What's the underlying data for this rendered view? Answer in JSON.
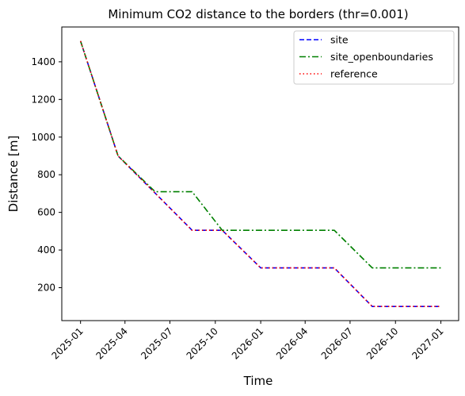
{
  "chart_data": {
    "type": "line",
    "title": "Minimum CO2 distance to the borders (thr=0.001)",
    "xlabel": "Time",
    "ylabel": "Distance [m]",
    "x_tick_labels": [
      "2025-01",
      "2025-04",
      "2025-07",
      "2025-10",
      "2026-01",
      "2026-04",
      "2026-07",
      "2026-10",
      "2027-01"
    ],
    "y_tick_labels": [
      "200",
      "400",
      "600",
      "800",
      "1000",
      "1200",
      "1400"
    ],
    "y_ticks": [
      200,
      400,
      600,
      800,
      1000,
      1200,
      1400
    ],
    "ylim": [
      25,
      1585
    ],
    "xlim": [
      "2024-11-24",
      "2027-02-06"
    ],
    "grid": false,
    "legend_position": "top-right",
    "series": [
      {
        "name": "site",
        "color": "#0000ff",
        "style": "dashed",
        "points": [
          {
            "date": "2025-01-01",
            "value": 1510
          },
          {
            "date": "2025-03-18",
            "value": 900
          },
          {
            "date": "2025-08-15",
            "value": 505
          },
          {
            "date": "2025-10-15",
            "value": 505
          },
          {
            "date": "2026-01-01",
            "value": 305
          },
          {
            "date": "2026-05-30",
            "value": 305
          },
          {
            "date": "2026-08-15",
            "value": 100
          },
          {
            "date": "2027-01-01",
            "value": 100
          }
        ]
      },
      {
        "name": "site_openboundaries",
        "color": "#008000",
        "style": "dashdot",
        "points": [
          {
            "date": "2025-01-01",
            "value": 1510
          },
          {
            "date": "2025-03-18",
            "value": 900
          },
          {
            "date": "2025-06-01",
            "value": 710
          },
          {
            "date": "2025-08-15",
            "value": 710
          },
          {
            "date": "2025-10-15",
            "value": 505
          },
          {
            "date": "2026-05-30",
            "value": 505
          },
          {
            "date": "2026-08-15",
            "value": 305
          },
          {
            "date": "2027-01-01",
            "value": 305
          }
        ]
      },
      {
        "name": "reference",
        "color": "#ff0000",
        "style": "dotted",
        "points": [
          {
            "date": "2025-01-01",
            "value": 1510
          },
          {
            "date": "2025-03-18",
            "value": 900
          },
          {
            "date": "2025-08-15",
            "value": 505
          },
          {
            "date": "2025-10-15",
            "value": 505
          },
          {
            "date": "2026-01-01",
            "value": 305
          },
          {
            "date": "2026-05-30",
            "value": 305
          },
          {
            "date": "2026-08-15",
            "value": 100
          },
          {
            "date": "2027-01-01",
            "value": 100
          }
        ]
      }
    ]
  }
}
